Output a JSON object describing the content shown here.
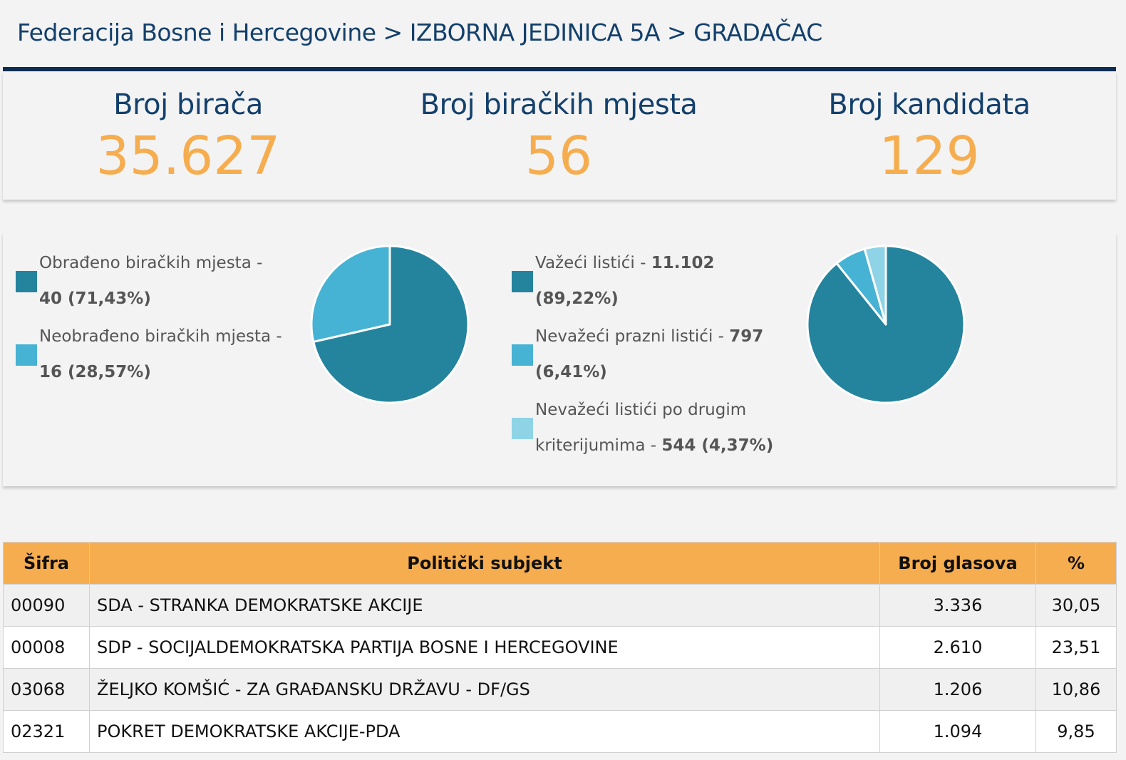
{
  "breadcrumb": "Federacija Bosne i Hercegovine > IZBORNA JEDINICA 5A > GRADAČAC",
  "stats": [
    {
      "label": "Broj birača",
      "value": "35.627"
    },
    {
      "label": "Broj biračkih mjesta",
      "value": "56"
    },
    {
      "label": "Broj kandidata",
      "value": "129"
    }
  ],
  "polling_chart": {
    "legend": [
      {
        "line1": "Obrađeno biračkih mjesta -",
        "line2_bold": "40 (71,43%)",
        "color": "#24849d"
      },
      {
        "line1": "Neobrađeno biračkih mjesta -",
        "line2_bold": "16 (28,57%)",
        "color": "#46b3d4"
      }
    ],
    "slices": [
      71.43,
      28.57
    ]
  },
  "ballot_chart": {
    "legend": [
      {
        "line1_text": "Važeći listići - ",
        "line1_bold": "11.102",
        "line2_bold": "(89,22%)",
        "color": "#24849d"
      },
      {
        "line1_text": "Nevažeći prazni listići - ",
        "line1_bold": "797",
        "line2_bold": "(6,41%)",
        "color": "#46b3d4"
      },
      {
        "line1_text": "Nevažeći listići po drugim",
        "line1_bold": "",
        "line2_text": "kriterijumima - ",
        "line2_bold": "544 (4,37%)",
        "color": "#8ed3e6"
      }
    ],
    "slices": [
      89.22,
      6.41,
      4.37
    ]
  },
  "table": {
    "headers": [
      "Šifra",
      "Politički subjekt",
      "Broj glasova",
      "%"
    ],
    "rows": [
      [
        "00090",
        "SDA - STRANKA DEMOKRATSKE AKCIJE",
        "3.336",
        "30,05"
      ],
      [
        "00008",
        "SDP - SOCIJALDEMOKRATSKA PARTIJA BOSNE I HERCEGOVINE",
        "2.610",
        "23,51"
      ],
      [
        "03068",
        "ŽELJKO KOMŠIĆ - ZA GRAĐANSKU DRŽAVU - DF/GS",
        "1.206",
        "10,86"
      ],
      [
        "02321",
        "POKRET DEMOKRATSKE AKCIJE-PDA",
        "1.094",
        "9,85"
      ]
    ]
  }
}
